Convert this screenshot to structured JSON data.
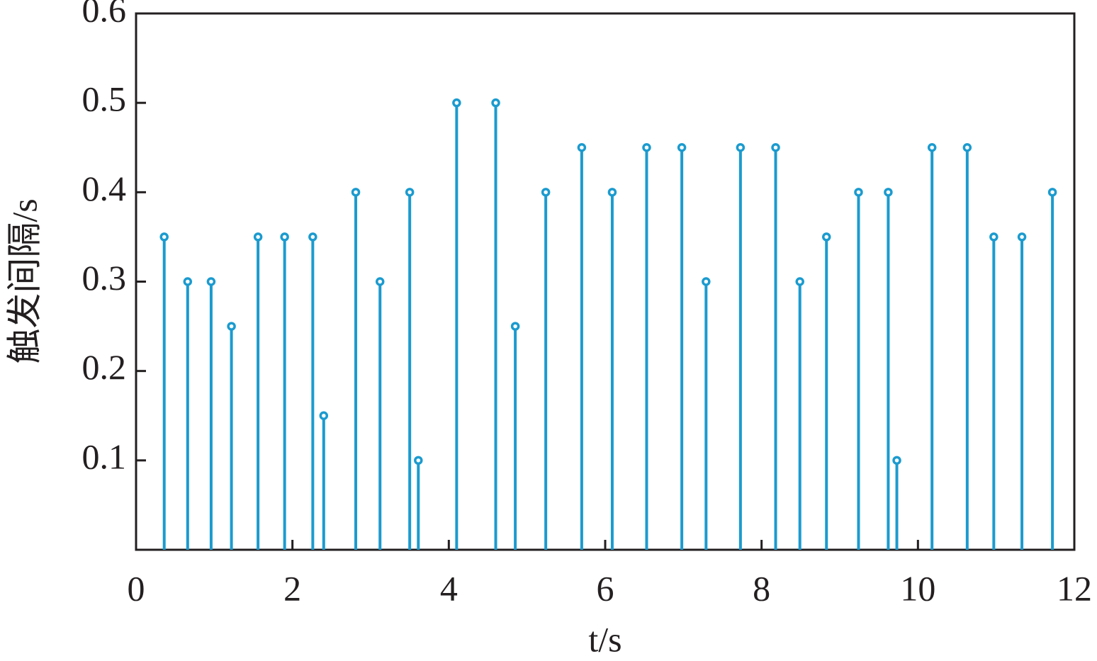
{
  "chart_data": {
    "type": "stem",
    "ylabel": "触发间隔/s",
    "xlabel": "t/s",
    "color": "#1b9bcf",
    "x": [
      0.36,
      0.66,
      0.96,
      1.22,
      1.56,
      1.9,
      2.26,
      2.4,
      2.81,
      3.12,
      3.5,
      3.61,
      4.1,
      4.6,
      4.85,
      5.24,
      5.7,
      6.09,
      6.53,
      6.98,
      7.29,
      7.73,
      8.18,
      8.49,
      8.83,
      9.24,
      9.62,
      9.73,
      10.18,
      10.63,
      10.97,
      11.33,
      11.72
    ],
    "values": [
      0.35,
      0.3,
      0.3,
      0.25,
      0.35,
      0.35,
      0.35,
      0.15,
      0.4,
      0.3,
      0.4,
      0.1,
      0.5,
      0.5,
      0.25,
      0.4,
      0.45,
      0.4,
      0.45,
      0.45,
      0.3,
      0.45,
      0.45,
      0.3,
      0.35,
      0.4,
      0.4,
      0.1,
      0.45,
      0.45,
      0.35,
      0.35,
      0.4
    ],
    "xlim": [
      0,
      12
    ],
    "xticks": [
      0,
      2,
      4,
      6,
      8,
      10,
      12
    ],
    "ylim": [
      0,
      0.6
    ],
    "yticks": [
      0.1,
      0.2,
      0.3,
      0.4,
      0.5,
      0.6
    ]
  }
}
